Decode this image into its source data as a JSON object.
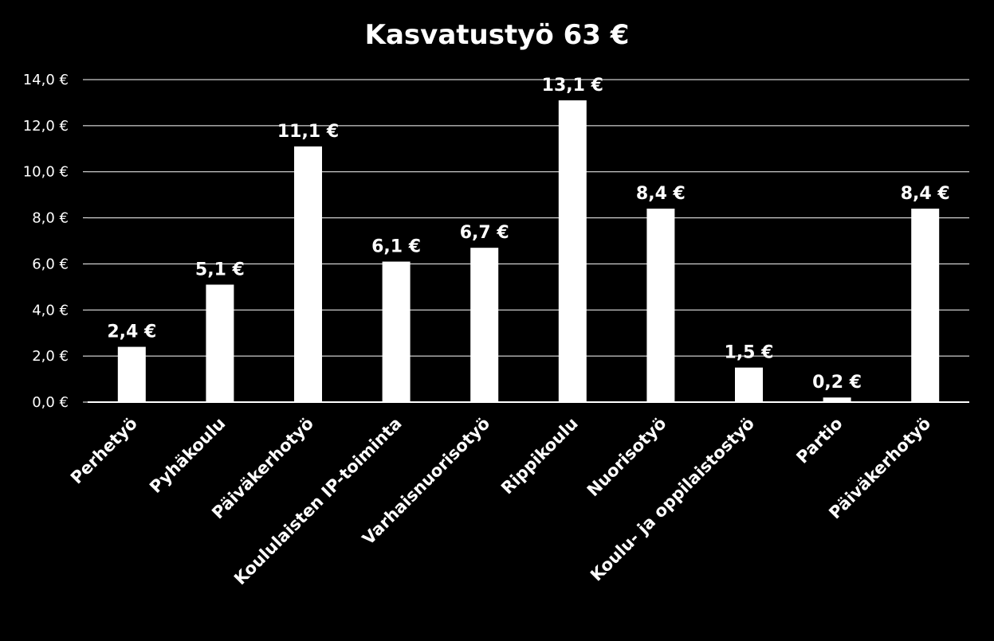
{
  "chart_data": {
    "type": "bar",
    "title": "Kasvatustyö 63 €",
    "xlabel": "",
    "ylabel": "",
    "ylim": [
      0,
      14
    ],
    "y_ticks": [
      "0,0 €",
      "2,0 €",
      "4,0 €",
      "6,0 €",
      "8,0 €",
      "10,0 €",
      "12,0 €",
      "14,0 €"
    ],
    "grid": true,
    "categories": [
      "Perhetyö",
      "Pyhäkoulu",
      "Päiväkerhotyö",
      "Koululaisten IP-toiminta",
      "Varhaisnuorisotyö",
      "Rippikoulu",
      "Nuorisotyö",
      "Koulu- ja oppilaistostyö",
      "Partio",
      "Päiväkerhotyö"
    ],
    "values": [
      2.4,
      5.1,
      11.1,
      6.1,
      6.7,
      13.1,
      8.4,
      1.5,
      0.2,
      8.4
    ],
    "data_labels": [
      "2,4 €",
      "5,1 €",
      "11,1 €",
      "6,1 €",
      "6,7 €",
      "13,1 €",
      "8,4 €",
      "1,5 €",
      "0,2 €",
      "8,4 €"
    ],
    "colors": {
      "background": "#000000",
      "bar": "#ffffff",
      "grid": "#ffffff",
      "text": "#ffffff"
    }
  }
}
